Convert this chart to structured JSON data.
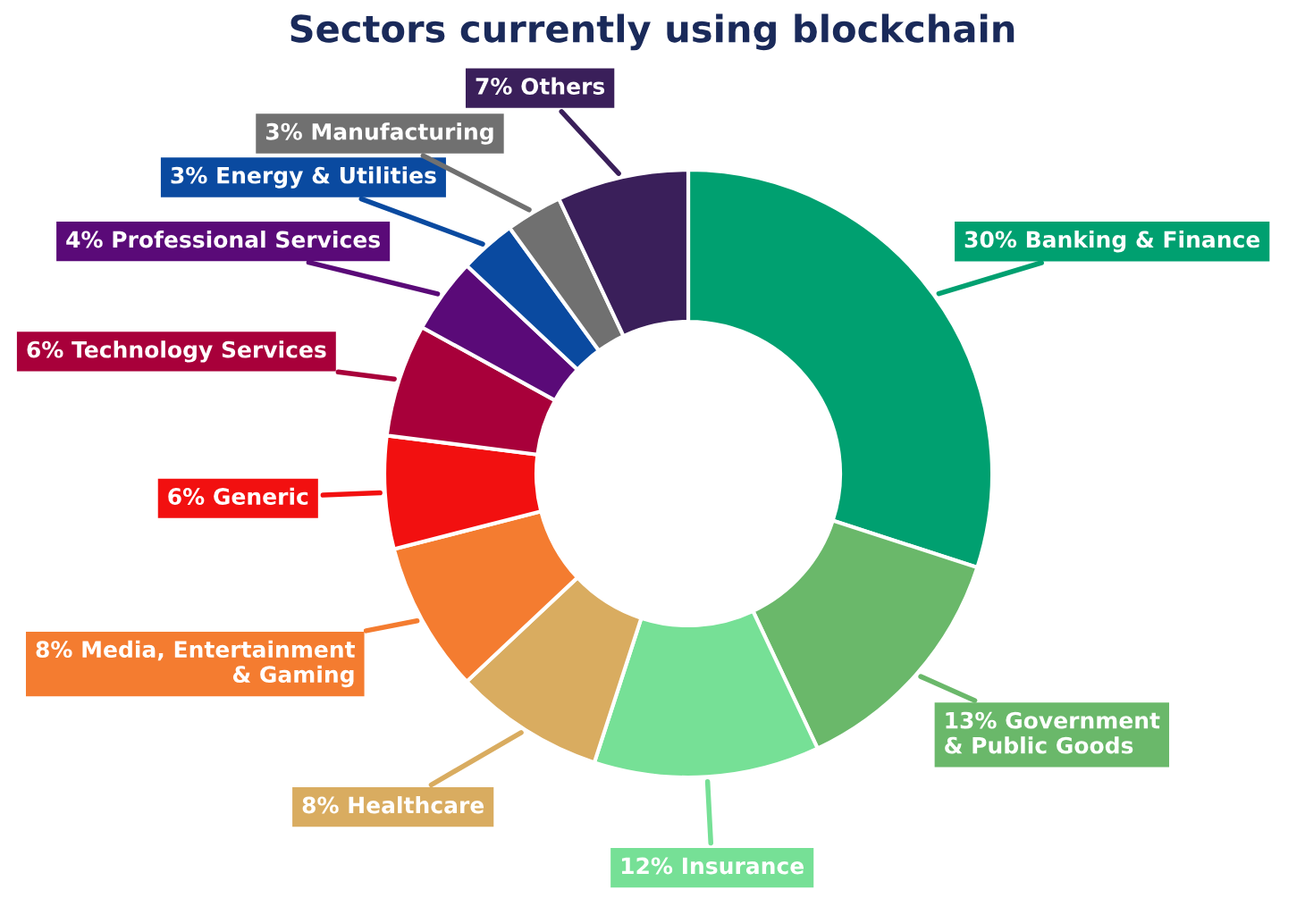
{
  "chart_data": {
    "type": "donut",
    "title": "Sectors currently using blockchain",
    "categories": [
      "Banking & Finance",
      "Government\n& Public Goods",
      "Insurance",
      "Healthcare",
      "Media, Entertainment\n& Gaming",
      "Generic",
      "Technology Services",
      "Professional Services",
      "Energy & Utilities",
      "Manufacturing",
      "Others"
    ],
    "values": [
      30,
      13,
      12,
      8,
      8,
      6,
      6,
      4,
      3,
      3,
      7
    ],
    "value_labels": [
      "30%",
      "13%",
      "12%",
      "8%",
      "8%",
      "6%",
      "6%",
      "4%",
      "3%",
      "3%",
      "7%"
    ],
    "colors": [
      "#00a070",
      "#6ab86a",
      "#76e096",
      "#d9ac60",
      "#f47c30",
      "#f21010",
      "#a8003a",
      "#5a0a78",
      "#0a4aa0",
      "#707070",
      "#3a1f5a"
    ]
  }
}
